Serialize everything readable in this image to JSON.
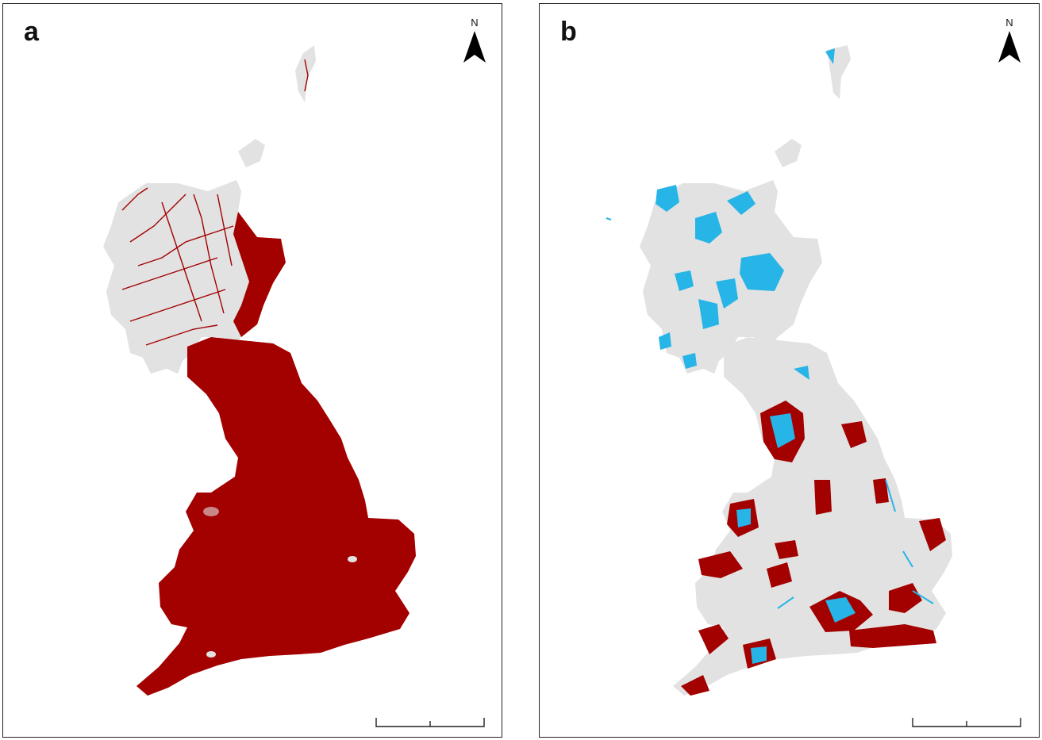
{
  "panels": [
    {
      "label": "a",
      "north_label": "N",
      "colors": {
        "land": "#e2e2e2",
        "feature": "#a30000"
      }
    },
    {
      "label": "b",
      "north_label": "N",
      "colors": {
        "land": "#e2e2e2",
        "feature": "#a30000",
        "overlay": "#27b4e6"
      }
    }
  ],
  "icons": {
    "north_arrow": "north-arrow-icon"
  }
}
